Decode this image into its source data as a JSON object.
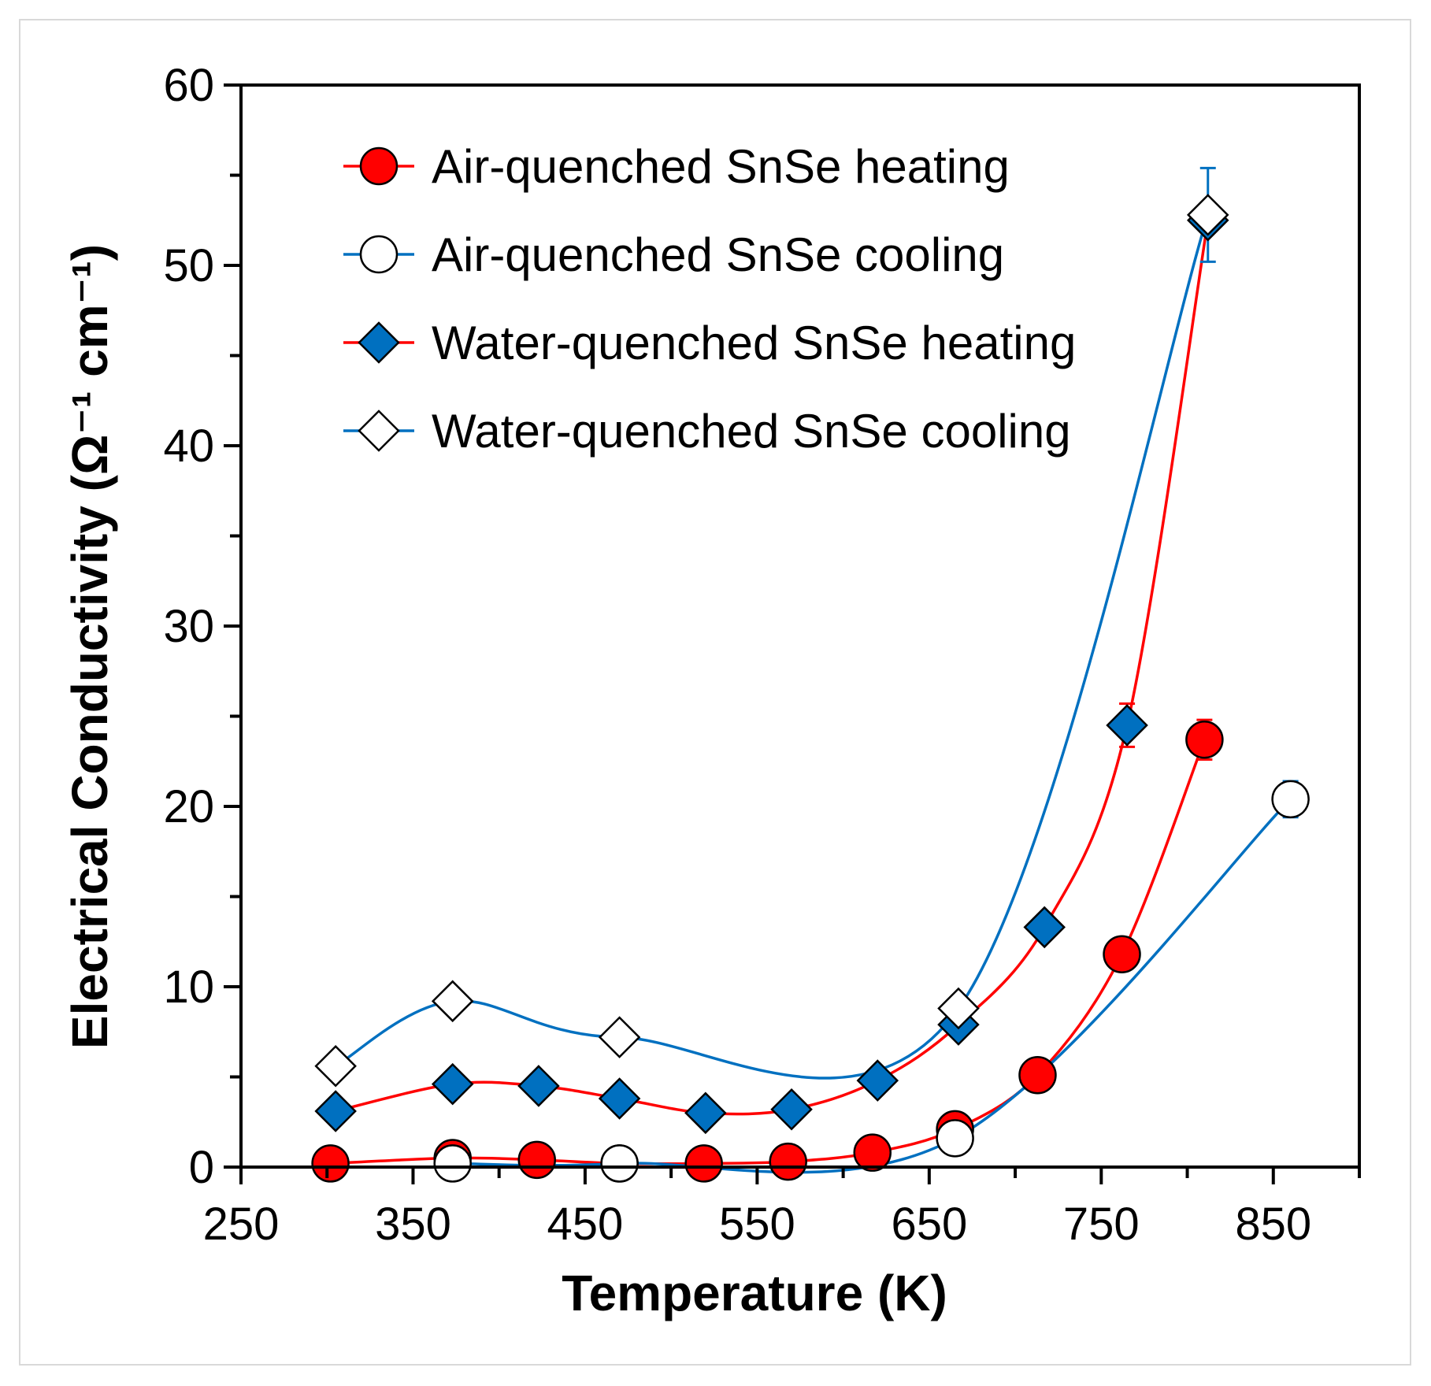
{
  "chart_data": {
    "type": "line",
    "title": "",
    "xlabel": "Temperature (K)",
    "ylabel": "Electrical Conductivity (Ω⁻¹ cm⁻¹)",
    "xlim": [
      250,
      900
    ],
    "ylim": [
      0,
      60
    ],
    "xticks": [
      250,
      350,
      450,
      550,
      650,
      750,
      850
    ],
    "yticks": [
      0,
      10,
      20,
      30,
      40,
      50,
      60
    ],
    "grid": false,
    "legend_position": "top-left",
    "series": [
      {
        "name": "Air-quenched SnSe heating",
        "marker": "circle-filled",
        "line_color": "#ff0000",
        "marker_color": "#ff0000",
        "x": [
          302,
          373,
          422,
          470,
          519,
          568,
          617,
          665,
          713,
          762,
          810
        ],
        "y": [
          0.2,
          0.5,
          0.4,
          0.2,
          0.2,
          0.3,
          0.8,
          2.1,
          5.1,
          11.8,
          23.7
        ],
        "error_x": [
          810
        ],
        "error_y": [
          1.1
        ]
      },
      {
        "name": "Air-quenched SnSe cooling",
        "marker": "circle-open",
        "line_color": "#0070c0",
        "marker_color": "#ffffff",
        "x": [
          373,
          470,
          665,
          860
        ],
        "y": [
          0.2,
          0.2,
          1.6,
          20.4
        ],
        "error_x": [
          860
        ],
        "error_y": [
          1.0
        ]
      },
      {
        "name": "Water-quenched SnSe heating",
        "marker": "diamond-filled",
        "line_color": "#ff0000",
        "marker_color": "#0070c0",
        "x": [
          305,
          373,
          423,
          470,
          520,
          570,
          620,
          667,
          717,
          765,
          812
        ],
        "y": [
          3.1,
          4.6,
          4.5,
          3.8,
          3.0,
          3.2,
          4.8,
          7.9,
          13.3,
          24.5,
          52.5
        ],
        "error_x": [
          765
        ],
        "error_y": [
          1.2
        ]
      },
      {
        "name": "Water-quenched SnSe cooling",
        "marker": "diamond-open",
        "line_color": "#0070c0",
        "marker_color": "#ffffff",
        "x": [
          305,
          373,
          470,
          667,
          812
        ],
        "y": [
          5.6,
          9.2,
          7.2,
          8.8,
          52.8
        ],
        "error_x": [
          812
        ],
        "error_y": [
          2.6
        ]
      }
    ]
  }
}
